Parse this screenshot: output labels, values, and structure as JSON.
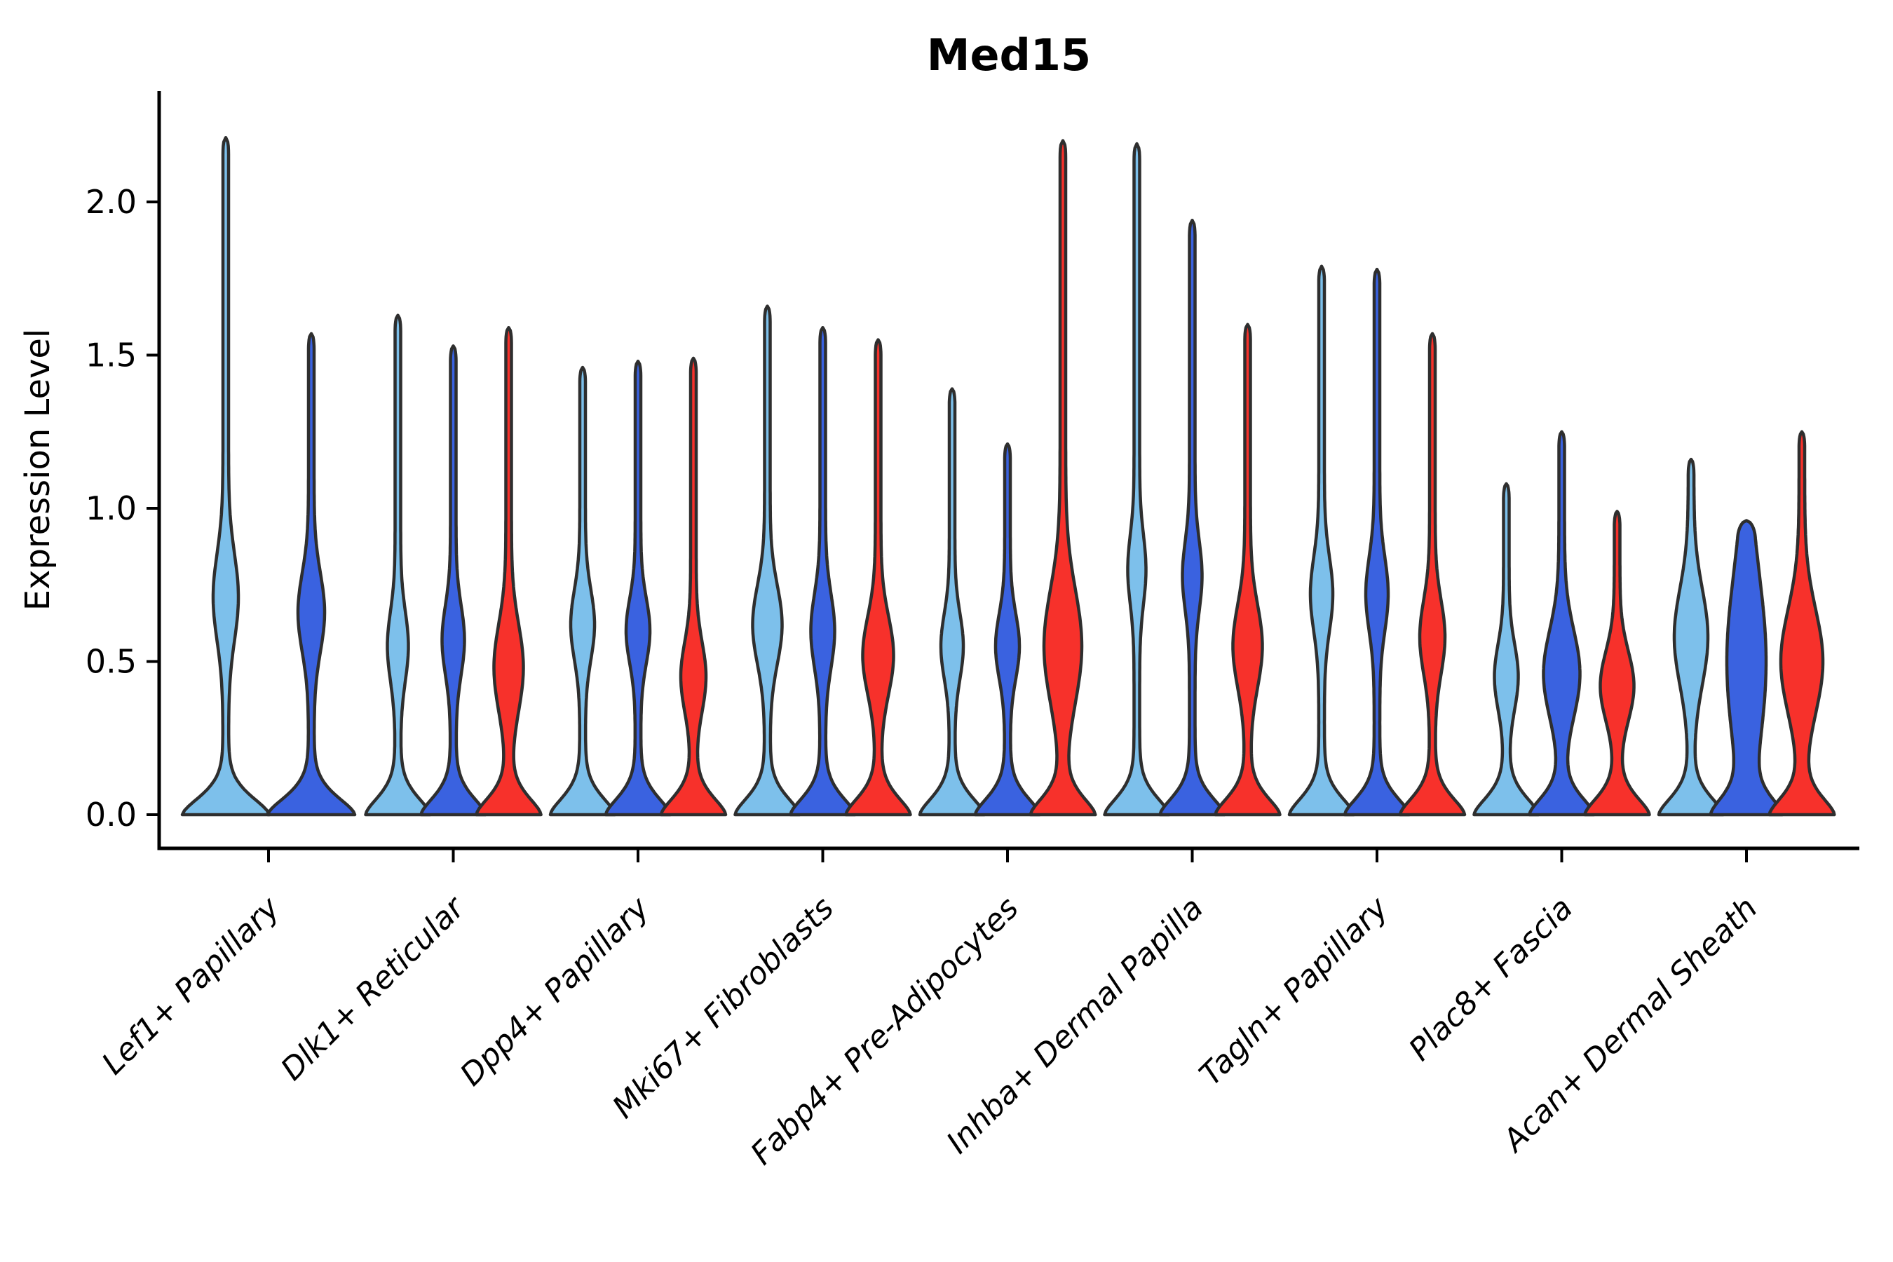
{
  "chart_data": {
    "type": "violin",
    "title": "Med15",
    "ylabel": "Expression Level",
    "xlabel": "",
    "ytick_labels": [
      "0.0",
      "0.5",
      "1.0",
      "1.5",
      "2.0"
    ],
    "yticks": [
      0.0,
      0.5,
      1.0,
      1.5,
      2.0
    ],
    "ylim": [
      -0.05,
      2.36
    ],
    "grid": false,
    "legend": "none",
    "categories": [
      "Lef1+ Papillary",
      "Dlk1+ Reticular",
      "Dpp4+ Papillary",
      "Mki67+ Fibroblasts",
      "Fabp4+ Pre-Adipocytes",
      "Inhba+ Dermal Papilla",
      "Tagln+ Papillary",
      "Plac8+ Fascia",
      "Acan+ Dermal Sheath"
    ],
    "series_colors": [
      "#7DC0EB",
      "#3A62E0",
      "#F7312B"
    ],
    "outline_color": "#2e2e2e",
    "axis_color": "#000000",
    "violins": [
      {
        "category": 0,
        "series": 0,
        "max": 2.21,
        "bulge_center": 0.71,
        "bulge_halfwidth": 14,
        "bulge_spread": 0.2
      },
      {
        "category": 0,
        "series": 1,
        "max": 1.57,
        "bulge_center": 0.66,
        "bulge_halfwidth": 15,
        "bulge_spread": 0.18
      },
      {
        "category": 1,
        "series": 0,
        "max": 1.63,
        "bulge_center": 0.55,
        "bulge_halfwidth": 11,
        "bulge_spread": 0.16
      },
      {
        "category": 1,
        "series": 1,
        "max": 1.53,
        "bulge_center": 0.57,
        "bulge_halfwidth": 12,
        "bulge_spread": 0.16
      },
      {
        "category": 1,
        "series": 2,
        "max": 1.59,
        "bulge_center": 0.48,
        "bulge_halfwidth": 17,
        "bulge_spread": 0.2
      },
      {
        "category": 2,
        "series": 0,
        "max": 1.46,
        "bulge_center": 0.62,
        "bulge_halfwidth": 13,
        "bulge_spread": 0.16
      },
      {
        "category": 2,
        "series": 1,
        "max": 1.48,
        "bulge_center": 0.6,
        "bulge_halfwidth": 13,
        "bulge_spread": 0.15
      },
      {
        "category": 2,
        "series": 2,
        "max": 1.49,
        "bulge_center": 0.45,
        "bulge_halfwidth": 14,
        "bulge_spread": 0.16
      },
      {
        "category": 3,
        "series": 0,
        "max": 1.66,
        "bulge_center": 0.62,
        "bulge_halfwidth": 17,
        "bulge_spread": 0.18
      },
      {
        "category": 3,
        "series": 1,
        "max": 1.59,
        "bulge_center": 0.6,
        "bulge_halfwidth": 13,
        "bulge_spread": 0.17
      },
      {
        "category": 3,
        "series": 2,
        "max": 1.55,
        "bulge_center": 0.52,
        "bulge_halfwidth": 18,
        "bulge_spread": 0.18
      },
      {
        "category": 4,
        "series": 0,
        "max": 1.39,
        "bulge_center": 0.55,
        "bulge_halfwidth": 12,
        "bulge_spread": 0.15
      },
      {
        "category": 4,
        "series": 1,
        "max": 1.21,
        "bulge_center": 0.55,
        "bulge_halfwidth": 13,
        "bulge_spread": 0.15
      },
      {
        "category": 4,
        "series": 2,
        "max": 2.2,
        "bulge_center": 0.55,
        "bulge_halfwidth": 23,
        "bulge_spread": 0.26
      },
      {
        "category": 5,
        "series": 0,
        "max": 2.19,
        "bulge_center": 0.8,
        "bulge_halfwidth": 9,
        "bulge_spread": 0.16
      },
      {
        "category": 5,
        "series": 1,
        "max": 1.94,
        "bulge_center": 0.78,
        "bulge_halfwidth": 10,
        "bulge_spread": 0.16
      },
      {
        "category": 5,
        "series": 2,
        "max": 1.6,
        "bulge_center": 0.55,
        "bulge_halfwidth": 17,
        "bulge_spread": 0.19
      },
      {
        "category": 6,
        "series": 0,
        "max": 1.79,
        "bulge_center": 0.72,
        "bulge_halfwidth": 12,
        "bulge_spread": 0.17
      },
      {
        "category": 6,
        "series": 1,
        "max": 1.78,
        "bulge_center": 0.72,
        "bulge_halfwidth": 12,
        "bulge_spread": 0.17
      },
      {
        "category": 6,
        "series": 2,
        "max": 1.57,
        "bulge_center": 0.58,
        "bulge_halfwidth": 14,
        "bulge_spread": 0.17
      },
      {
        "category": 7,
        "series": 0,
        "max": 1.08,
        "bulge_center": 0.45,
        "bulge_halfwidth": 13,
        "bulge_spread": 0.15
      },
      {
        "category": 7,
        "series": 1,
        "max": 1.25,
        "bulge_center": 0.46,
        "bulge_halfwidth": 22,
        "bulge_spread": 0.2
      },
      {
        "category": 7,
        "series": 2,
        "max": 0.99,
        "bulge_center": 0.42,
        "bulge_halfwidth": 20,
        "bulge_spread": 0.16
      },
      {
        "category": 8,
        "series": 0,
        "max": 1.16,
        "bulge_center": 0.58,
        "bulge_halfwidth": 20,
        "bulge_spread": 0.22
      },
      {
        "category": 8,
        "series": 1,
        "max": 0.96,
        "bulge_center": 0.5,
        "bulge_halfwidth": 24,
        "bulge_spread": 0.4
      },
      {
        "category": 8,
        "series": 2,
        "max": 1.25,
        "bulge_center": 0.5,
        "bulge_halfwidth": 26,
        "bulge_spread": 0.24
      }
    ]
  }
}
